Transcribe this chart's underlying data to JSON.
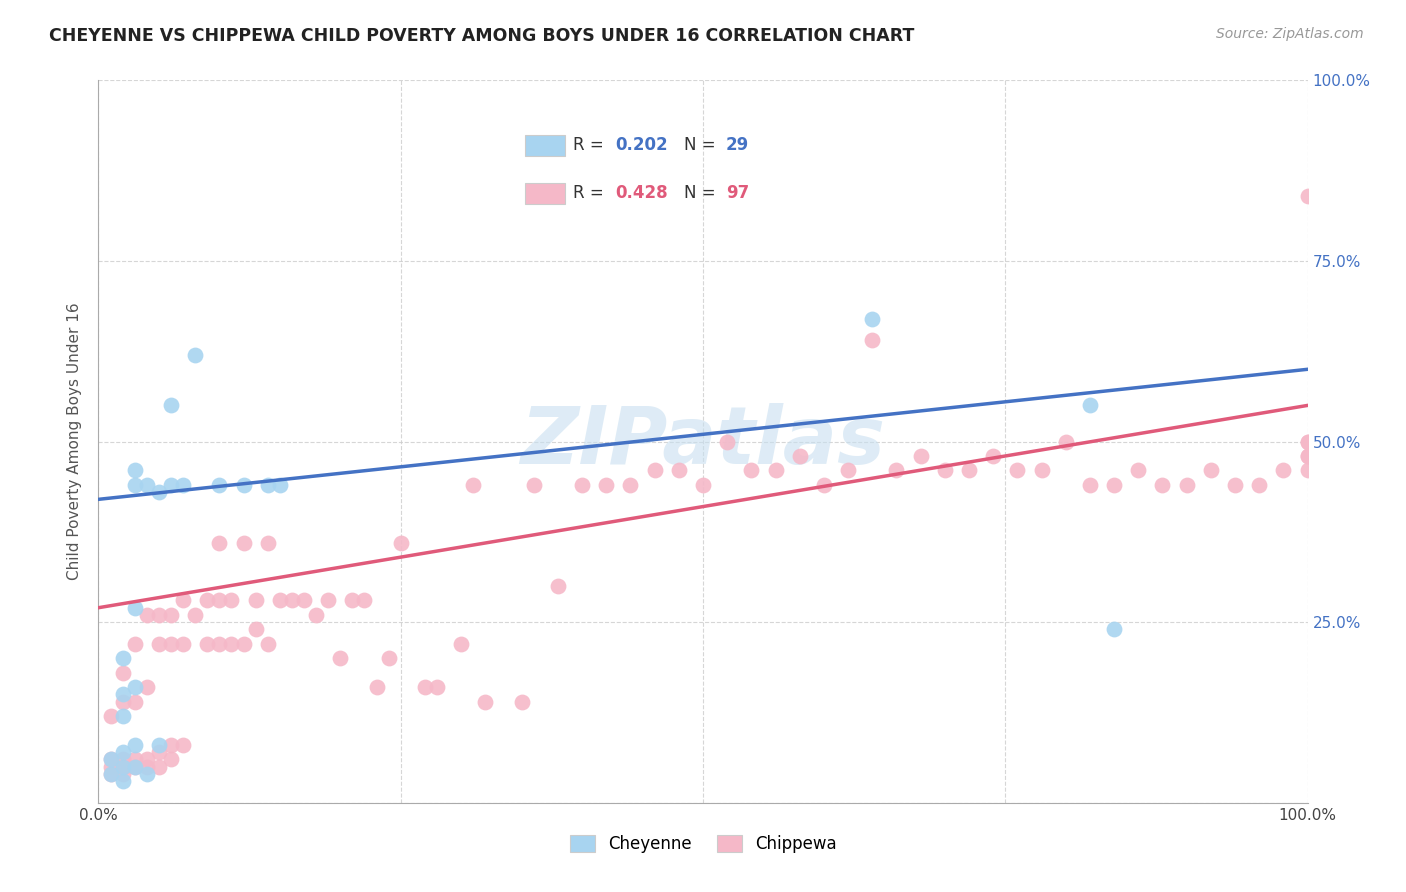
{
  "title": "CHEYENNE VS CHIPPEWA CHILD POVERTY AMONG BOYS UNDER 16 CORRELATION CHART",
  "source": "Source: ZipAtlas.com",
  "ylabel": "Child Poverty Among Boys Under 16",
  "cheyenne_label": "Cheyenne",
  "chippewa_label": "Chippewa",
  "cheyenne_R": 0.202,
  "cheyenne_N": 29,
  "chippewa_R": 0.428,
  "chippewa_N": 97,
  "cheyenne_color": "#a8d4f0",
  "chippewa_color": "#f5b8c8",
  "cheyenne_line_color": "#4472c4",
  "chippewa_line_color": "#e05a7a",
  "right_tick_color": "#4472c4",
  "watermark_color": "#c8dff0",
  "xlim": [
    0,
    1
  ],
  "ylim": [
    0,
    1
  ],
  "cheyenne_x": [
    0.01,
    0.01,
    0.02,
    0.02,
    0.02,
    0.02,
    0.02,
    0.02,
    0.03,
    0.03,
    0.03,
    0.03,
    0.03,
    0.03,
    0.04,
    0.04,
    0.05,
    0.05,
    0.06,
    0.06,
    0.07,
    0.08,
    0.1,
    0.12,
    0.14,
    0.15,
    0.64,
    0.82,
    0.84
  ],
  "cheyenne_y": [
    0.04,
    0.06,
    0.03,
    0.05,
    0.07,
    0.12,
    0.15,
    0.2,
    0.05,
    0.08,
    0.16,
    0.27,
    0.44,
    0.46,
    0.04,
    0.44,
    0.08,
    0.43,
    0.44,
    0.55,
    0.44,
    0.62,
    0.44,
    0.44,
    0.44,
    0.44,
    0.67,
    0.55,
    0.24
  ],
  "chippewa_x": [
    0.01,
    0.01,
    0.01,
    0.01,
    0.02,
    0.02,
    0.02,
    0.02,
    0.02,
    0.03,
    0.03,
    0.03,
    0.03,
    0.04,
    0.04,
    0.04,
    0.04,
    0.05,
    0.05,
    0.05,
    0.05,
    0.06,
    0.06,
    0.06,
    0.06,
    0.07,
    0.07,
    0.07,
    0.08,
    0.09,
    0.09,
    0.1,
    0.1,
    0.1,
    0.11,
    0.11,
    0.12,
    0.12,
    0.13,
    0.13,
    0.14,
    0.14,
    0.15,
    0.16,
    0.17,
    0.18,
    0.19,
    0.2,
    0.21,
    0.22,
    0.23,
    0.24,
    0.25,
    0.27,
    0.28,
    0.3,
    0.31,
    0.32,
    0.35,
    0.36,
    0.38,
    0.4,
    0.42,
    0.44,
    0.46,
    0.48,
    0.5,
    0.52,
    0.54,
    0.56,
    0.58,
    0.6,
    0.62,
    0.64,
    0.66,
    0.68,
    0.7,
    0.72,
    0.74,
    0.76,
    0.78,
    0.8,
    0.82,
    0.84,
    0.86,
    0.88,
    0.9,
    0.92,
    0.94,
    0.96,
    0.98,
    1.0,
    1.0,
    1.0,
    1.0,
    1.0,
    1.0
  ],
  "chippewa_y": [
    0.04,
    0.05,
    0.06,
    0.12,
    0.04,
    0.05,
    0.06,
    0.14,
    0.18,
    0.05,
    0.06,
    0.14,
    0.22,
    0.05,
    0.06,
    0.16,
    0.26,
    0.05,
    0.07,
    0.22,
    0.26,
    0.06,
    0.08,
    0.22,
    0.26,
    0.08,
    0.22,
    0.28,
    0.26,
    0.22,
    0.28,
    0.22,
    0.28,
    0.36,
    0.22,
    0.28,
    0.22,
    0.36,
    0.24,
    0.28,
    0.22,
    0.36,
    0.28,
    0.28,
    0.28,
    0.26,
    0.28,
    0.2,
    0.28,
    0.28,
    0.16,
    0.2,
    0.36,
    0.16,
    0.16,
    0.22,
    0.44,
    0.14,
    0.14,
    0.44,
    0.3,
    0.44,
    0.44,
    0.44,
    0.46,
    0.46,
    0.44,
    0.5,
    0.46,
    0.46,
    0.48,
    0.44,
    0.46,
    0.64,
    0.46,
    0.48,
    0.46,
    0.46,
    0.48,
    0.46,
    0.46,
    0.5,
    0.44,
    0.44,
    0.46,
    0.44,
    0.44,
    0.46,
    0.44,
    0.44,
    0.46,
    0.5,
    0.84,
    0.5,
    0.46,
    0.48,
    0.48
  ]
}
